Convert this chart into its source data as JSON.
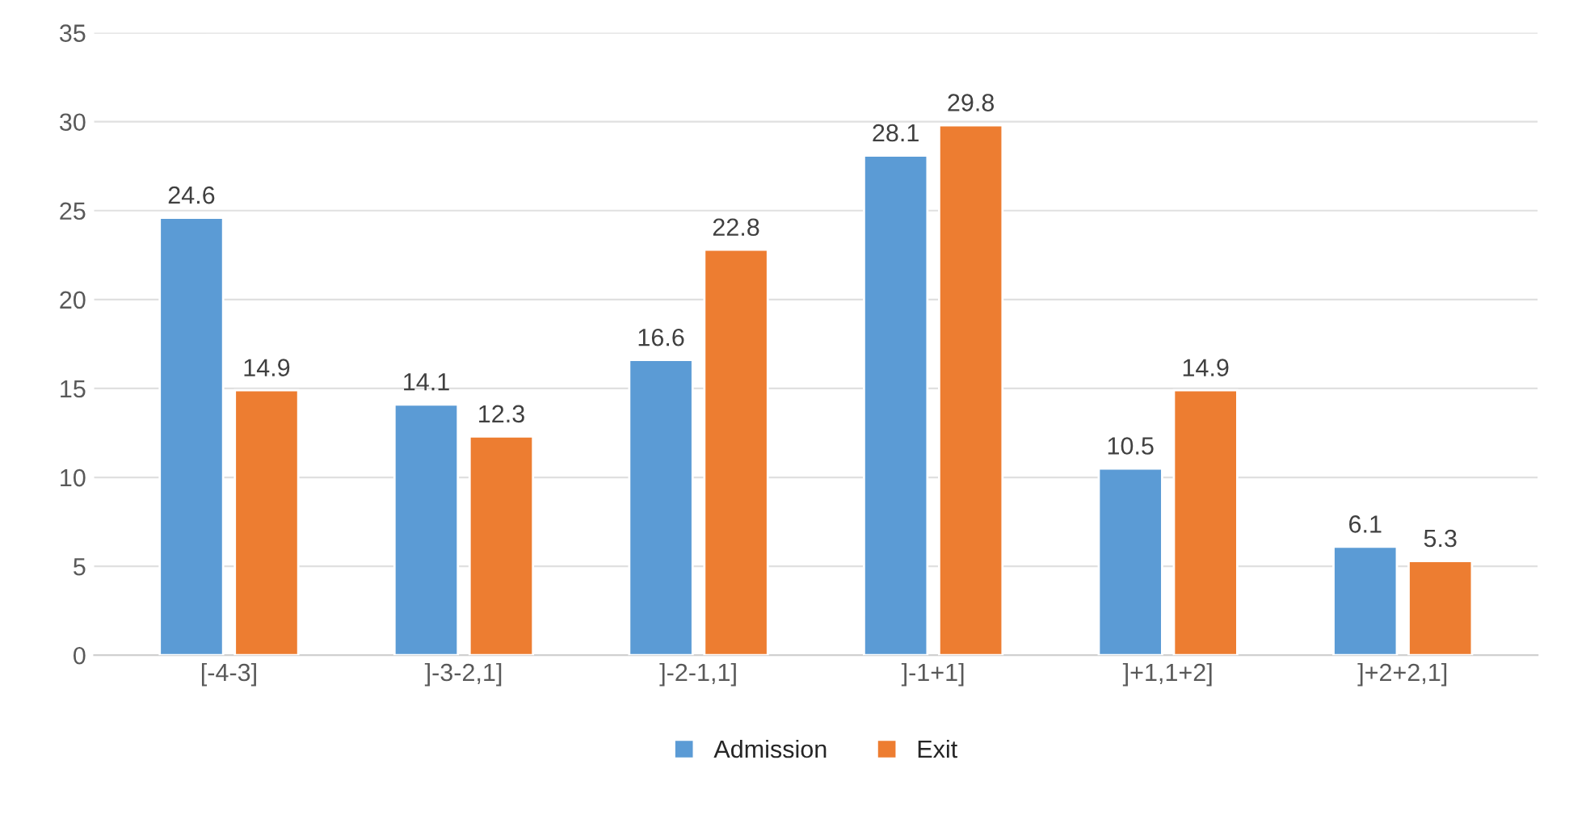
{
  "chart_data": {
    "type": "bar",
    "categories": [
      "[-4-3]",
      "]-3-2,1]",
      "]-2-1,1]",
      "]-1+1]",
      "]+1,1+2]",
      "]+2+2,1]"
    ],
    "series": [
      {
        "name": "Admission",
        "color": "#5b9bd5",
        "values": [
          24.6,
          14.1,
          16.6,
          28.1,
          10.5,
          6.1
        ]
      },
      {
        "name": "Exit",
        "color": "#ed7d31",
        "values": [
          14.9,
          12.3,
          22.8,
          29.8,
          14.9,
          5.3
        ]
      }
    ],
    "ylim": [
      0,
      35
    ],
    "yticks": [
      0,
      5,
      10,
      15,
      20,
      25,
      30,
      35
    ],
    "grid": "y",
    "legend": "bottom",
    "data_labels": true
  }
}
